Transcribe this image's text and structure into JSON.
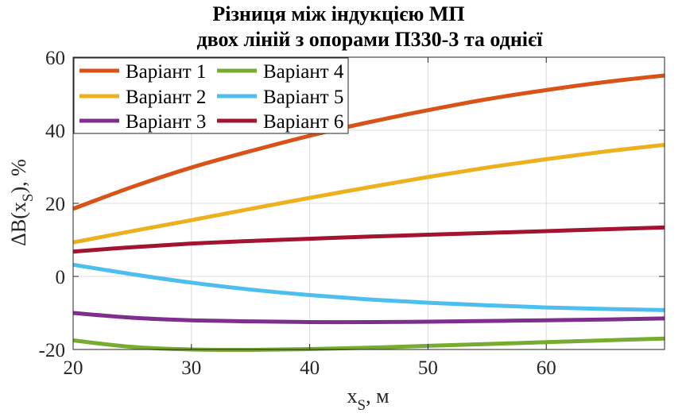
{
  "chart_data": {
    "type": "line",
    "title_line1": "Різниця між індукцією МП",
    "title_line2": "двох ліній з опорами П330-3 та однієї",
    "xlabel_main": "x",
    "xlabel_sub": "S",
    "xlabel_unit": ", м",
    "ylabel_prefix": "ΔB(x",
    "ylabel_sub": "S",
    "ylabel_suffix": "), %",
    "xlim": [
      20,
      70
    ],
    "ylim": [
      -20,
      60
    ],
    "xticks": [
      20,
      30,
      40,
      50,
      60
    ],
    "yticks": [
      -20,
      0,
      20,
      40,
      60
    ],
    "grid": true,
    "legend_position": "top-left",
    "x": [
      20,
      25,
      30,
      35,
      40,
      45,
      50,
      55,
      60,
      65,
      70
    ],
    "series": [
      {
        "name": "Варіант 1",
        "color": "#d95319",
        "values": [
          18.5,
          24.5,
          29.8,
          34.3,
          38.5,
          42.2,
          45.5,
          48.5,
          51.0,
          53.2,
          55.0
        ]
      },
      {
        "name": "Варіант 2",
        "color": "#edb120",
        "values": [
          9.3,
          12.4,
          15.4,
          18.5,
          21.5,
          24.4,
          27.2,
          29.8,
          32.1,
          34.2,
          36.0
        ]
      },
      {
        "name": "Варіант 3",
        "color": "#7e2f8e",
        "values": [
          -10.0,
          -11.3,
          -12.0,
          -12.3,
          -12.5,
          -12.5,
          -12.4,
          -12.2,
          -12.0,
          -11.8,
          -11.5
        ]
      },
      {
        "name": "Варіант 4",
        "color": "#77ac30",
        "values": [
          -17.5,
          -19.3,
          -20.0,
          -20.1,
          -19.9,
          -19.5,
          -19.0,
          -18.5,
          -18.0,
          -17.5,
          -17.0
        ]
      },
      {
        "name": "Варіант 5",
        "color": "#4dbeee",
        "values": [
          3.2,
          0.6,
          -1.7,
          -3.6,
          -5.1,
          -6.3,
          -7.2,
          -7.9,
          -8.5,
          -8.9,
          -9.2
        ]
      },
      {
        "name": "Варіант 6",
        "color": "#a2142f",
        "values": [
          6.8,
          8.0,
          9.0,
          9.7,
          10.3,
          10.9,
          11.4,
          11.9,
          12.4,
          12.9,
          13.4
        ]
      }
    ]
  }
}
